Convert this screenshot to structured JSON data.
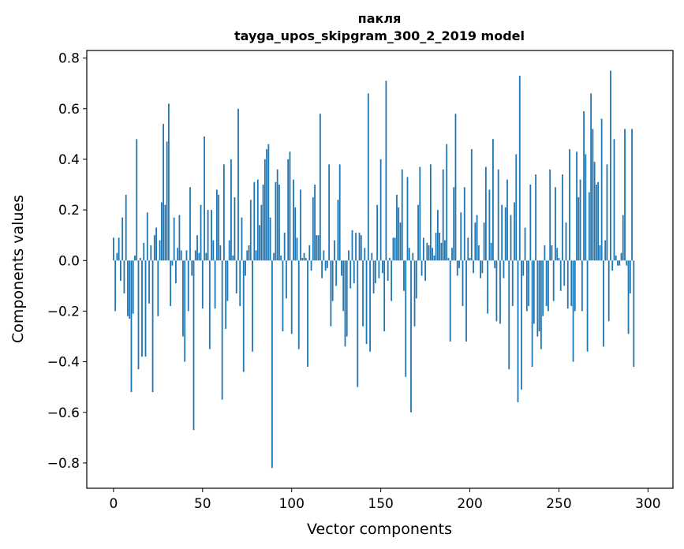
{
  "chart_data": {
    "type": "bar",
    "title": "пакля",
    "subtitle": "tayga_upos_skipgram_300_2_2019 model",
    "xlabel": "Vector components",
    "ylabel": "Components values",
    "xlim": [
      -15,
      314
    ],
    "ylim": [
      -0.9,
      0.83
    ],
    "xticks": [
      0,
      50,
      100,
      150,
      200,
      250,
      300
    ],
    "yticks": [
      -0.8,
      -0.6,
      -0.4,
      -0.2,
      0.0,
      0.2,
      0.4,
      0.6,
      0.8
    ],
    "xtick_labels": [
      "0",
      "50",
      "100",
      "150",
      "200",
      "250",
      "300"
    ],
    "ytick_labels": [
      "−0.8",
      "−0.6",
      "−0.4",
      "−0.2",
      "0.0",
      "0.2",
      "0.4",
      "0.6",
      "0.8"
    ],
    "bar_color": "#1f77b4",
    "grid": false,
    "values": [
      0.09,
      -0.2,
      0.03,
      0.09,
      -0.08,
      0.17,
      -0.13,
      0.26,
      -0.22,
      -0.23,
      -0.52,
      -0.21,
      0.02,
      0.48,
      -0.43,
      0.01,
      -0.38,
      0.07,
      -0.38,
      0.19,
      -0.17,
      0.06,
      -0.52,
      0.1,
      0.13,
      -0.22,
      0.08,
      0.23,
      0.54,
      0.22,
      0.47,
      0.62,
      -0.18,
      -0.02,
      0.17,
      -0.09,
      0.05,
      0.18,
      0.04,
      -0.3,
      -0.4,
      0.04,
      -0.2,
      0.29,
      -0.06,
      -0.67,
      0.04,
      0.1,
      0.03,
      0.22,
      -0.19,
      0.49,
      0.03,
      0.2,
      -0.35,
      0.2,
      0.08,
      -0.19,
      0.28,
      0.26,
      0.06,
      -0.55,
      0.38,
      -0.27,
      -0.16,
      0.08,
      0.4,
      0.02,
      0.25,
      -0.13,
      0.6,
      -0.18,
      0.17,
      -0.44,
      -0.06,
      0.04,
      0.06,
      0.24,
      -0.36,
      0.31,
      0.04,
      0.32,
      0.14,
      0.22,
      0.3,
      0.4,
      0.44,
      0.46,
      0.17,
      -0.82,
      0.03,
      0.31,
      0.36,
      0.3,
      0.02,
      -0.28,
      0.11,
      -0.15,
      0.4,
      0.43,
      -0.29,
      0.32,
      0.21,
      0.09,
      -0.35,
      0.28,
      0.01,
      0.03,
      0.01,
      -0.42,
      0.06,
      -0.04,
      0.25,
      0.3,
      0.1,
      0.1,
      0.58,
      -0.07,
      0.04,
      -0.04,
      -0.03,
      0.38,
      -0.26,
      -0.16,
      0.08,
      -0.1,
      0.24,
      0.38,
      -0.06,
      -0.2,
      -0.34,
      -0.3,
      0.04,
      -0.11,
      0.12,
      -0.09,
      0.11,
      -0.5,
      0.11,
      0.1,
      -0.26,
      0.05,
      -0.33,
      0.66,
      -0.36,
      0.03,
      -0.13,
      -0.09,
      0.22,
      -0.07,
      0.4,
      -0.05,
      -0.28,
      0.71,
      -0.08,
      0.01,
      -0.16,
      0.09,
      0.09,
      0.26,
      0.21,
      0.15,
      0.36,
      -0.12,
      -0.46,
      0.33,
      0.05,
      -0.6,
      0.03,
      -0.26,
      -0.15,
      0.22,
      0.37,
      -0.06,
      0.09,
      -0.08,
      0.07,
      0.06,
      0.38,
      0.05,
      0.02,
      0.11,
      0.2,
      0.11,
      0.07,
      0.36,
      0.08,
      0.46,
      0.01,
      -0.32,
      0.05,
      0.29,
      0.58,
      -0.06,
      -0.03,
      0.19,
      -0.18,
      0.29,
      -0.32,
      0.09,
      0.01,
      0.44,
      -0.05,
      0.15,
      0.18,
      0.06,
      -0.07,
      -0.05,
      0.15,
      0.37,
      -0.21,
      0.28,
      0.07,
      0.48,
      -0.03,
      -0.24,
      0.36,
      -0.25,
      0.22,
      -0.07,
      0.21,
      0.32,
      -0.43,
      0.18,
      -0.18,
      0.23,
      0.42,
      -0.56,
      0.73,
      -0.51,
      -0.06,
      0.13,
      -0.2,
      -0.18,
      0.3,
      -0.42,
      -0.25,
      0.34,
      -0.3,
      -0.28,
      -0.35,
      -0.22,
      0.06,
      -0.18,
      -0.2,
      0.36,
      0.06,
      -0.16,
      0.29,
      0.05,
      0.01,
      -0.12,
      0.34,
      -0.1,
      0.15,
      -0.19,
      0.44,
      -0.18,
      -0.4,
      -0.2,
      0.43,
      0.25,
      0.32,
      -0.2,
      0.59,
      0.42,
      -0.36,
      0.27,
      0.66,
      0.52,
      0.39,
      0.3,
      0.31,
      0.06,
      0.56,
      -0.34,
      0.08,
      0.38,
      -0.24,
      0.75,
      -0.04,
      0.48,
      0.02,
      -0.02,
      -0.02,
      0.03,
      0.18,
      0.52,
      -0.02,
      -0.29,
      -0.13,
      0.52,
      -0.42
    ]
  }
}
